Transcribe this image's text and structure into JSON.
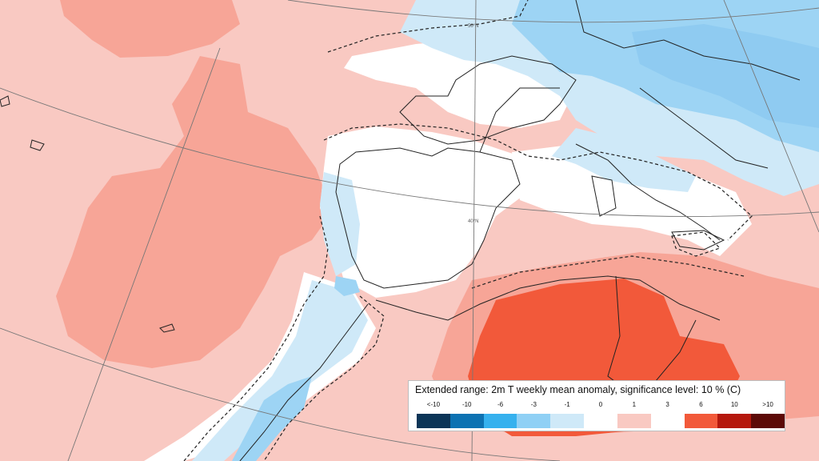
{
  "map": {
    "lat_labels": [
      "50°N",
      "40°N"
    ],
    "colors": {
      "ocean_warm": "#f9c9c2",
      "warm_mid": "#f7a597",
      "hot": "#f2593a",
      "neutral": "#ffffff",
      "cool_light": "#cfe9f8",
      "cool_mid": "#9dd4f4",
      "cool_strong": "#5fb9ee",
      "coast": "#222222",
      "grid": "#777777"
    }
  },
  "legend": {
    "title": "Extended range: 2m T weekly mean anomaly, significance level: 10 % (C)",
    "ticks": [
      "<-10",
      "-10",
      "-6",
      "-3",
      "-1",
      "0",
      "1",
      "3",
      "6",
      "10",
      ">10"
    ],
    "colors": [
      "#0c3557",
      "#0d72b2",
      "#36b1ee",
      "#8fd0f5",
      "#cfe9f8",
      "#ffffff",
      "#f9c9c2",
      "#ffffff",
      "#f2593a",
      "#b5180d",
      "#5c0a07"
    ]
  }
}
